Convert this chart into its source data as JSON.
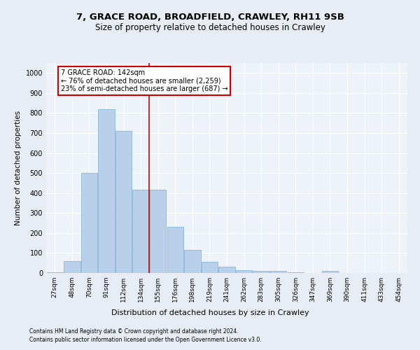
{
  "title1": "7, GRACE ROAD, BROADFIELD, CRAWLEY, RH11 9SB",
  "title2": "Size of property relative to detached houses in Crawley",
  "xlabel": "Distribution of detached houses by size in Crawley",
  "ylabel": "Number of detached properties",
  "bar_labels": [
    "27sqm",
    "48sqm",
    "70sqm",
    "91sqm",
    "112sqm",
    "134sqm",
    "155sqm",
    "176sqm",
    "198sqm",
    "219sqm",
    "241sqm",
    "262sqm",
    "283sqm",
    "305sqm",
    "326sqm",
    "347sqm",
    "369sqm",
    "390sqm",
    "411sqm",
    "433sqm",
    "454sqm"
  ],
  "bar_values": [
    5,
    60,
    500,
    820,
    710,
    415,
    415,
    230,
    115,
    55,
    30,
    15,
    10,
    10,
    5,
    0,
    10,
    0,
    0,
    0,
    0
  ],
  "bar_color": "#b8d0ea",
  "bar_edge_color": "#7aafd4",
  "vline_color": "#cc0000",
  "annotation_text": "7 GRACE ROAD: 142sqm\n← 76% of detached houses are smaller (2,259)\n23% of semi-detached houses are larger (687) →",
  "annotation_box_color": "#ffffff",
  "annotation_box_edge": "#cc0000",
  "ylim": [
    0,
    1050
  ],
  "yticks": [
    0,
    100,
    200,
    300,
    400,
    500,
    600,
    700,
    800,
    900,
    1000
  ],
  "footer1": "Contains HM Land Registry data © Crown copyright and database right 2024.",
  "footer2": "Contains public sector information licensed under the Open Government Licence v3.0.",
  "bg_color": "#e8edf5",
  "plot_bg_color": "#eef2f9",
  "title1_fontsize": 9.5,
  "title2_fontsize": 8.5,
  "ylabel_fontsize": 7.5,
  "xlabel_fontsize": 8,
  "tick_fontsize": 6.5,
  "ytick_fontsize": 7,
  "annot_fontsize": 7,
  "footer_fontsize": 5.5,
  "bar_width": 0.95
}
